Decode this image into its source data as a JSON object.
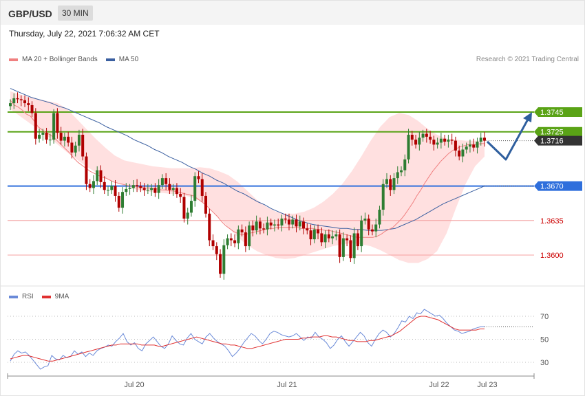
{
  "header": {
    "pair": "GBP/USD",
    "timeframe": "30 MIN"
  },
  "datetime": "Thursday, July 22, 2021 7:06:32 AM CET",
  "copyright": "Research © 2021 Trading Central",
  "colors": {
    "ma20": "#f08080",
    "ma50": "#3a5fa0",
    "support": "#2f6fdc",
    "resistance": "#5aa316",
    "level": "#f4a0a0",
    "up": "#2e7d32",
    "down": "#b00000",
    "band": "#ffd6d6",
    "rsi": "#6a8ad8",
    "rsi_ma": "#e03030",
    "current": "#333333"
  },
  "legend": {
    "ma20": "MA 20 + Bollinger Bands",
    "ma50": "MA 50",
    "rsi": "RSI",
    "rsi_ma": "9MA"
  },
  "chart_data": [
    {
      "type": "candlestick",
      "symbol": "GBP/USD",
      "ylim": [
        1.3575,
        1.3785
      ],
      "x_ticks": [
        "Jul 20",
        "Jul 21",
        "Jul 22",
        "Jul 23"
      ],
      "levels": [
        {
          "label": "1.3745",
          "value": 1.3745,
          "kind": "resistance"
        },
        {
          "label": "1.3725",
          "value": 1.3725,
          "kind": "resistance"
        },
        {
          "label": "1.3716",
          "value": 1.3716,
          "kind": "current"
        },
        {
          "label": "1.3670",
          "value": 1.367,
          "kind": "support"
        },
        {
          "label": "1.3635",
          "value": 1.3635,
          "kind": "level"
        },
        {
          "label": "1.3600",
          "value": 1.36,
          "kind": "level"
        }
      ],
      "close": [
        1.3754,
        1.3759,
        1.3758,
        1.3757,
        1.3754,
        1.3752,
        1.3744,
        1.3718,
        1.3722,
        1.3724,
        1.3717,
        1.3717,
        1.3744,
        1.3724,
        1.3716,
        1.372,
        1.3714,
        1.3704,
        1.3711,
        1.3722,
        1.37,
        1.3672,
        1.3668,
        1.3675,
        1.3686,
        1.3674,
        1.3666,
        1.3666,
        1.367,
        1.366,
        1.3648,
        1.3664,
        1.3667,
        1.3668,
        1.3671,
        1.367,
        1.3668,
        1.3666,
        1.3666,
        1.3668,
        1.3663,
        1.3671,
        1.3678,
        1.3672,
        1.3666,
        1.3668,
        1.3662,
        1.3659,
        1.3637,
        1.3643,
        1.3655,
        1.368,
        1.3677,
        1.366,
        1.3642,
        1.3615,
        1.3609,
        1.3601,
        1.3581,
        1.361,
        1.3617,
        1.3615,
        1.3612,
        1.3626,
        1.3623,
        1.3609,
        1.363,
        1.3625,
        1.3634,
        1.3627,
        1.3626,
        1.3633,
        1.363,
        1.3631,
        1.363,
        1.3637,
        1.3636,
        1.3631,
        1.3636,
        1.3629,
        1.3634,
        1.3627,
        1.3625,
        1.3616,
        1.3626,
        1.3622,
        1.3613,
        1.3621,
        1.3617,
        1.3619,
        1.3621,
        1.3598,
        1.3617,
        1.3615,
        1.3597,
        1.3622,
        1.3609,
        1.3635,
        1.3637,
        1.3626,
        1.3624,
        1.3631,
        1.3646,
        1.3672,
        1.3677,
        1.3666,
        1.3678,
        1.3684,
        1.3686,
        1.3697,
        1.3722,
        1.3717,
        1.3712,
        1.3719,
        1.3723,
        1.372,
        1.3717,
        1.3712,
        1.3714,
        1.3718,
        1.3715,
        1.3717,
        1.3716,
        1.3706,
        1.37,
        1.3707,
        1.371,
        1.3712,
        1.3709,
        1.3715,
        1.3719,
        1.3716
      ],
      "ma20": [
        1.3757,
        1.3752,
        1.375,
        1.3747,
        1.3743,
        1.3741,
        1.3736,
        1.373,
        1.3727,
        1.3724,
        1.3722,
        1.3719,
        1.3715,
        1.3711,
        1.3707,
        1.3703,
        1.3698,
        1.3694,
        1.3691,
        1.3688,
        1.3685,
        1.3683,
        1.3681,
        1.3679,
        1.3678,
        1.3676,
        1.3674,
        1.3673,
        1.3672,
        1.3671,
        1.367,
        1.367,
        1.3669,
        1.3669,
        1.3668,
        1.3668,
        1.3667,
        1.3667,
        1.3666,
        1.3666,
        1.3665,
        1.3665,
        1.3664,
        1.3663,
        1.3662,
        1.3661,
        1.366,
        1.3657,
        1.3654,
        1.3651,
        1.3647,
        1.3643,
        1.3639,
        1.3634,
        1.363,
        1.3627,
        1.3624,
        1.3622,
        1.3621,
        1.3621,
        1.3622,
        1.3623,
        1.3624,
        1.3625,
        1.3626,
        1.3627,
        1.3627,
        1.3628,
        1.3628,
        1.3628,
        1.3628,
        1.3628,
        1.3628,
        1.3627,
        1.3627,
        1.3627,
        1.3627,
        1.3626,
        1.3626,
        1.3625,
        1.3625,
        1.3624,
        1.3623,
        1.3622,
        1.3621,
        1.362,
        1.3619,
        1.3618,
        1.3618,
        1.3618,
        1.3618,
        1.3618,
        1.3619,
        1.3621,
        1.3624,
        1.3626,
        1.3628,
        1.3632,
        1.3636,
        1.3641,
        1.3647,
        1.3653,
        1.366,
        1.3666,
        1.3673,
        1.3679,
        1.3685,
        1.369,
        1.3695,
        1.3699,
        1.3703,
        1.3706,
        1.3708,
        1.371,
        1.3711,
        1.3712,
        1.3712,
        1.3712,
        1.3713,
        1.3713
      ],
      "ma50": [
        1.3769,
        1.3766,
        1.3763,
        1.376,
        1.3758,
        1.3756,
        1.3754,
        1.3751,
        1.3749,
        1.3746,
        1.3743,
        1.374,
        1.3737,
        1.3734,
        1.373,
        1.3727,
        1.3724,
        1.3721,
        1.3717,
        1.3714,
        1.3711,
        1.3707,
        1.3704,
        1.37,
        1.3697,
        1.3694,
        1.369,
        1.3687,
        1.3683,
        1.368,
        1.3676,
        1.3673,
        1.3669,
        1.3665,
        1.3662,
        1.3658,
        1.3654,
        1.3651,
        1.3647,
        1.3644,
        1.3641,
        1.3638,
        1.3635,
        1.3633,
        1.3631,
        1.363,
        1.3629,
        1.3628,
        1.3627,
        1.3627,
        1.3626,
        1.3626,
        1.3625,
        1.3625,
        1.3625,
        1.3626,
        1.3627,
        1.363,
        1.3633,
        1.3636,
        1.364,
        1.3644,
        1.3648,
        1.3652,
        1.3655,
        1.3658,
        1.3661,
        1.3664,
        1.3667,
        1.367
      ],
      "bb_upper": [
        1.3766,
        1.3763,
        1.376,
        1.3758,
        1.3756,
        1.3754,
        1.3748,
        1.3738,
        1.3728,
        1.3718,
        1.3709,
        1.3701,
        1.3696,
        1.3694,
        1.3692,
        1.369,
        1.3689,
        1.3688,
        1.3688,
        1.3688,
        1.3689,
        1.3688,
        1.3685,
        1.3681,
        1.3674,
        1.3665,
        1.3656,
        1.3649,
        1.3644,
        1.3642,
        1.3642,
        1.3644,
        1.3648,
        1.3654,
        1.3662,
        1.3672,
        1.3685,
        1.37,
        1.3716,
        1.373,
        1.374,
        1.3744,
        1.3742,
        1.3736,
        1.3728,
        1.3722,
        1.3718,
        1.3717,
        1.3716,
        1.3716,
        1.3716
      ],
      "bb_lower": [
        1.3748,
        1.3741,
        1.3734,
        1.3727,
        1.372,
        1.3712,
        1.3704,
        1.3697,
        1.369,
        1.3684,
        1.3678,
        1.3674,
        1.367,
        1.3667,
        1.3665,
        1.3664,
        1.3663,
        1.3662,
        1.3661,
        1.3659,
        1.3655,
        1.3648,
        1.3638,
        1.3628,
        1.3618,
        1.361,
        1.3604,
        1.36,
        1.3597,
        1.3596,
        1.3597,
        1.36,
        1.3603,
        1.3606,
        1.3609,
        1.3611,
        1.3612,
        1.3611,
        1.3609,
        1.3605,
        1.36,
        1.3595,
        1.3592,
        1.3592,
        1.3596,
        1.3604,
        1.3622,
        1.3648,
        1.3672,
        1.369,
        1.37
      ]
    },
    {
      "type": "line",
      "title": "RSI",
      "ylim": [
        20,
        80
      ],
      "y_ticks": [
        70,
        50,
        30
      ],
      "series": [
        {
          "name": "RSI",
          "values": [
            31,
            37,
            40,
            38,
            39,
            36,
            32,
            28,
            24,
            26,
            27,
            36,
            33,
            32,
            36,
            34,
            35,
            40,
            37,
            39,
            35,
            38,
            36,
            40,
            42,
            43,
            45,
            44,
            48,
            51,
            55,
            48,
            45,
            47,
            42,
            40,
            46,
            49,
            52,
            48,
            44,
            42,
            46,
            53,
            49,
            46,
            45,
            51,
            55,
            50,
            48,
            46,
            52,
            55,
            51,
            48,
            46,
            44,
            40,
            35,
            38,
            42,
            47,
            51,
            55,
            53,
            49,
            46,
            50,
            55,
            57,
            56,
            54,
            53,
            52,
            53,
            55,
            52,
            49,
            52,
            51,
            56,
            52,
            50,
            47,
            42,
            45,
            50,
            53,
            48,
            44,
            48,
            52,
            56,
            53,
            47,
            44,
            50,
            55,
            58,
            56,
            52,
            55,
            60,
            66,
            65,
            70,
            68,
            73,
            72,
            76,
            74,
            72,
            70,
            71,
            68,
            64,
            61,
            58,
            57,
            55,
            56,
            57,
            59,
            60,
            61,
            61
          ]
        },
        {
          "name": "9MA",
          "values": [
            33,
            34,
            35,
            36,
            36,
            35,
            34,
            33,
            32,
            31,
            31,
            32,
            33,
            34,
            35,
            36,
            37,
            38,
            39,
            40,
            41,
            42,
            43,
            44,
            45,
            45,
            46,
            46,
            46,
            46,
            46,
            45,
            45,
            45,
            45,
            44,
            44,
            45,
            46,
            47,
            48,
            49,
            50,
            51,
            52,
            51,
            50,
            49,
            48,
            47,
            46,
            46,
            45,
            45,
            44,
            43,
            42,
            42,
            43,
            44,
            45,
            46,
            47,
            48,
            49,
            50,
            50,
            50,
            50,
            51,
            51,
            52,
            52,
            52,
            53,
            53,
            52,
            52,
            51,
            50,
            49,
            49,
            48,
            48,
            48,
            49,
            49,
            50,
            51,
            52,
            53,
            55,
            57,
            60,
            63,
            66,
            69,
            70,
            70,
            69,
            68,
            67,
            65,
            63,
            61,
            59,
            58,
            58,
            58,
            58,
            58,
            59,
            59
          ]
        }
      ]
    }
  ]
}
